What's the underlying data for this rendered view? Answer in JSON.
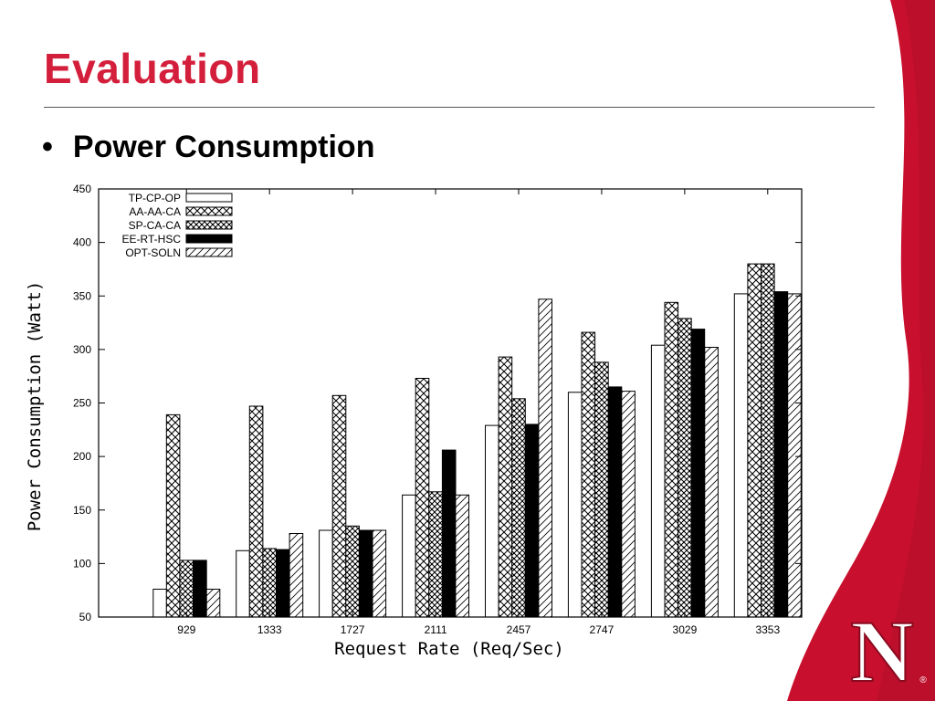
{
  "slide": {
    "title": "Evaluation",
    "bullet": "•",
    "bullet_text": "Power Consumption",
    "logo_text": "N",
    "logo_reg": "®"
  },
  "colors": {
    "title": "#d41f3c",
    "brand_red": "#c8102e",
    "brand_red_dark": "#a50d26"
  },
  "chart_data": {
    "type": "bar",
    "xlabel": "Request Rate (Req/Sec)",
    "ylabel": "Power Consumption (Watt)",
    "ylim": [
      50,
      450
    ],
    "yticks": [
      50,
      100,
      150,
      200,
      250,
      300,
      350,
      400,
      450
    ],
    "grid": false,
    "legend_position": "top-left",
    "categories": [
      "929",
      "1333",
      "1727",
      "2111",
      "2457",
      "2747",
      "3029",
      "3353"
    ],
    "series": [
      {
        "name": "TP-CP-OP",
        "pattern": "white",
        "values": [
          76,
          112,
          131,
          164,
          229,
          260,
          304,
          352
        ]
      },
      {
        "name": "AA-AA-CA",
        "pattern": "crosshatch",
        "values": [
          239,
          247,
          257,
          273,
          293,
          316,
          344,
          380
        ]
      },
      {
        "name": "SP-CA-CA",
        "pattern": "dense",
        "values": [
          103,
          114,
          135,
          167,
          254,
          288,
          329,
          380
        ]
      },
      {
        "name": "EE-RT-HSC",
        "pattern": "black",
        "values": [
          103,
          113,
          131,
          206,
          230,
          265,
          319,
          354
        ]
      },
      {
        "name": "OPT-SOLN",
        "pattern": "diagonal",
        "values": [
          76,
          128,
          131,
          164,
          347,
          261,
          302,
          352
        ]
      }
    ]
  }
}
